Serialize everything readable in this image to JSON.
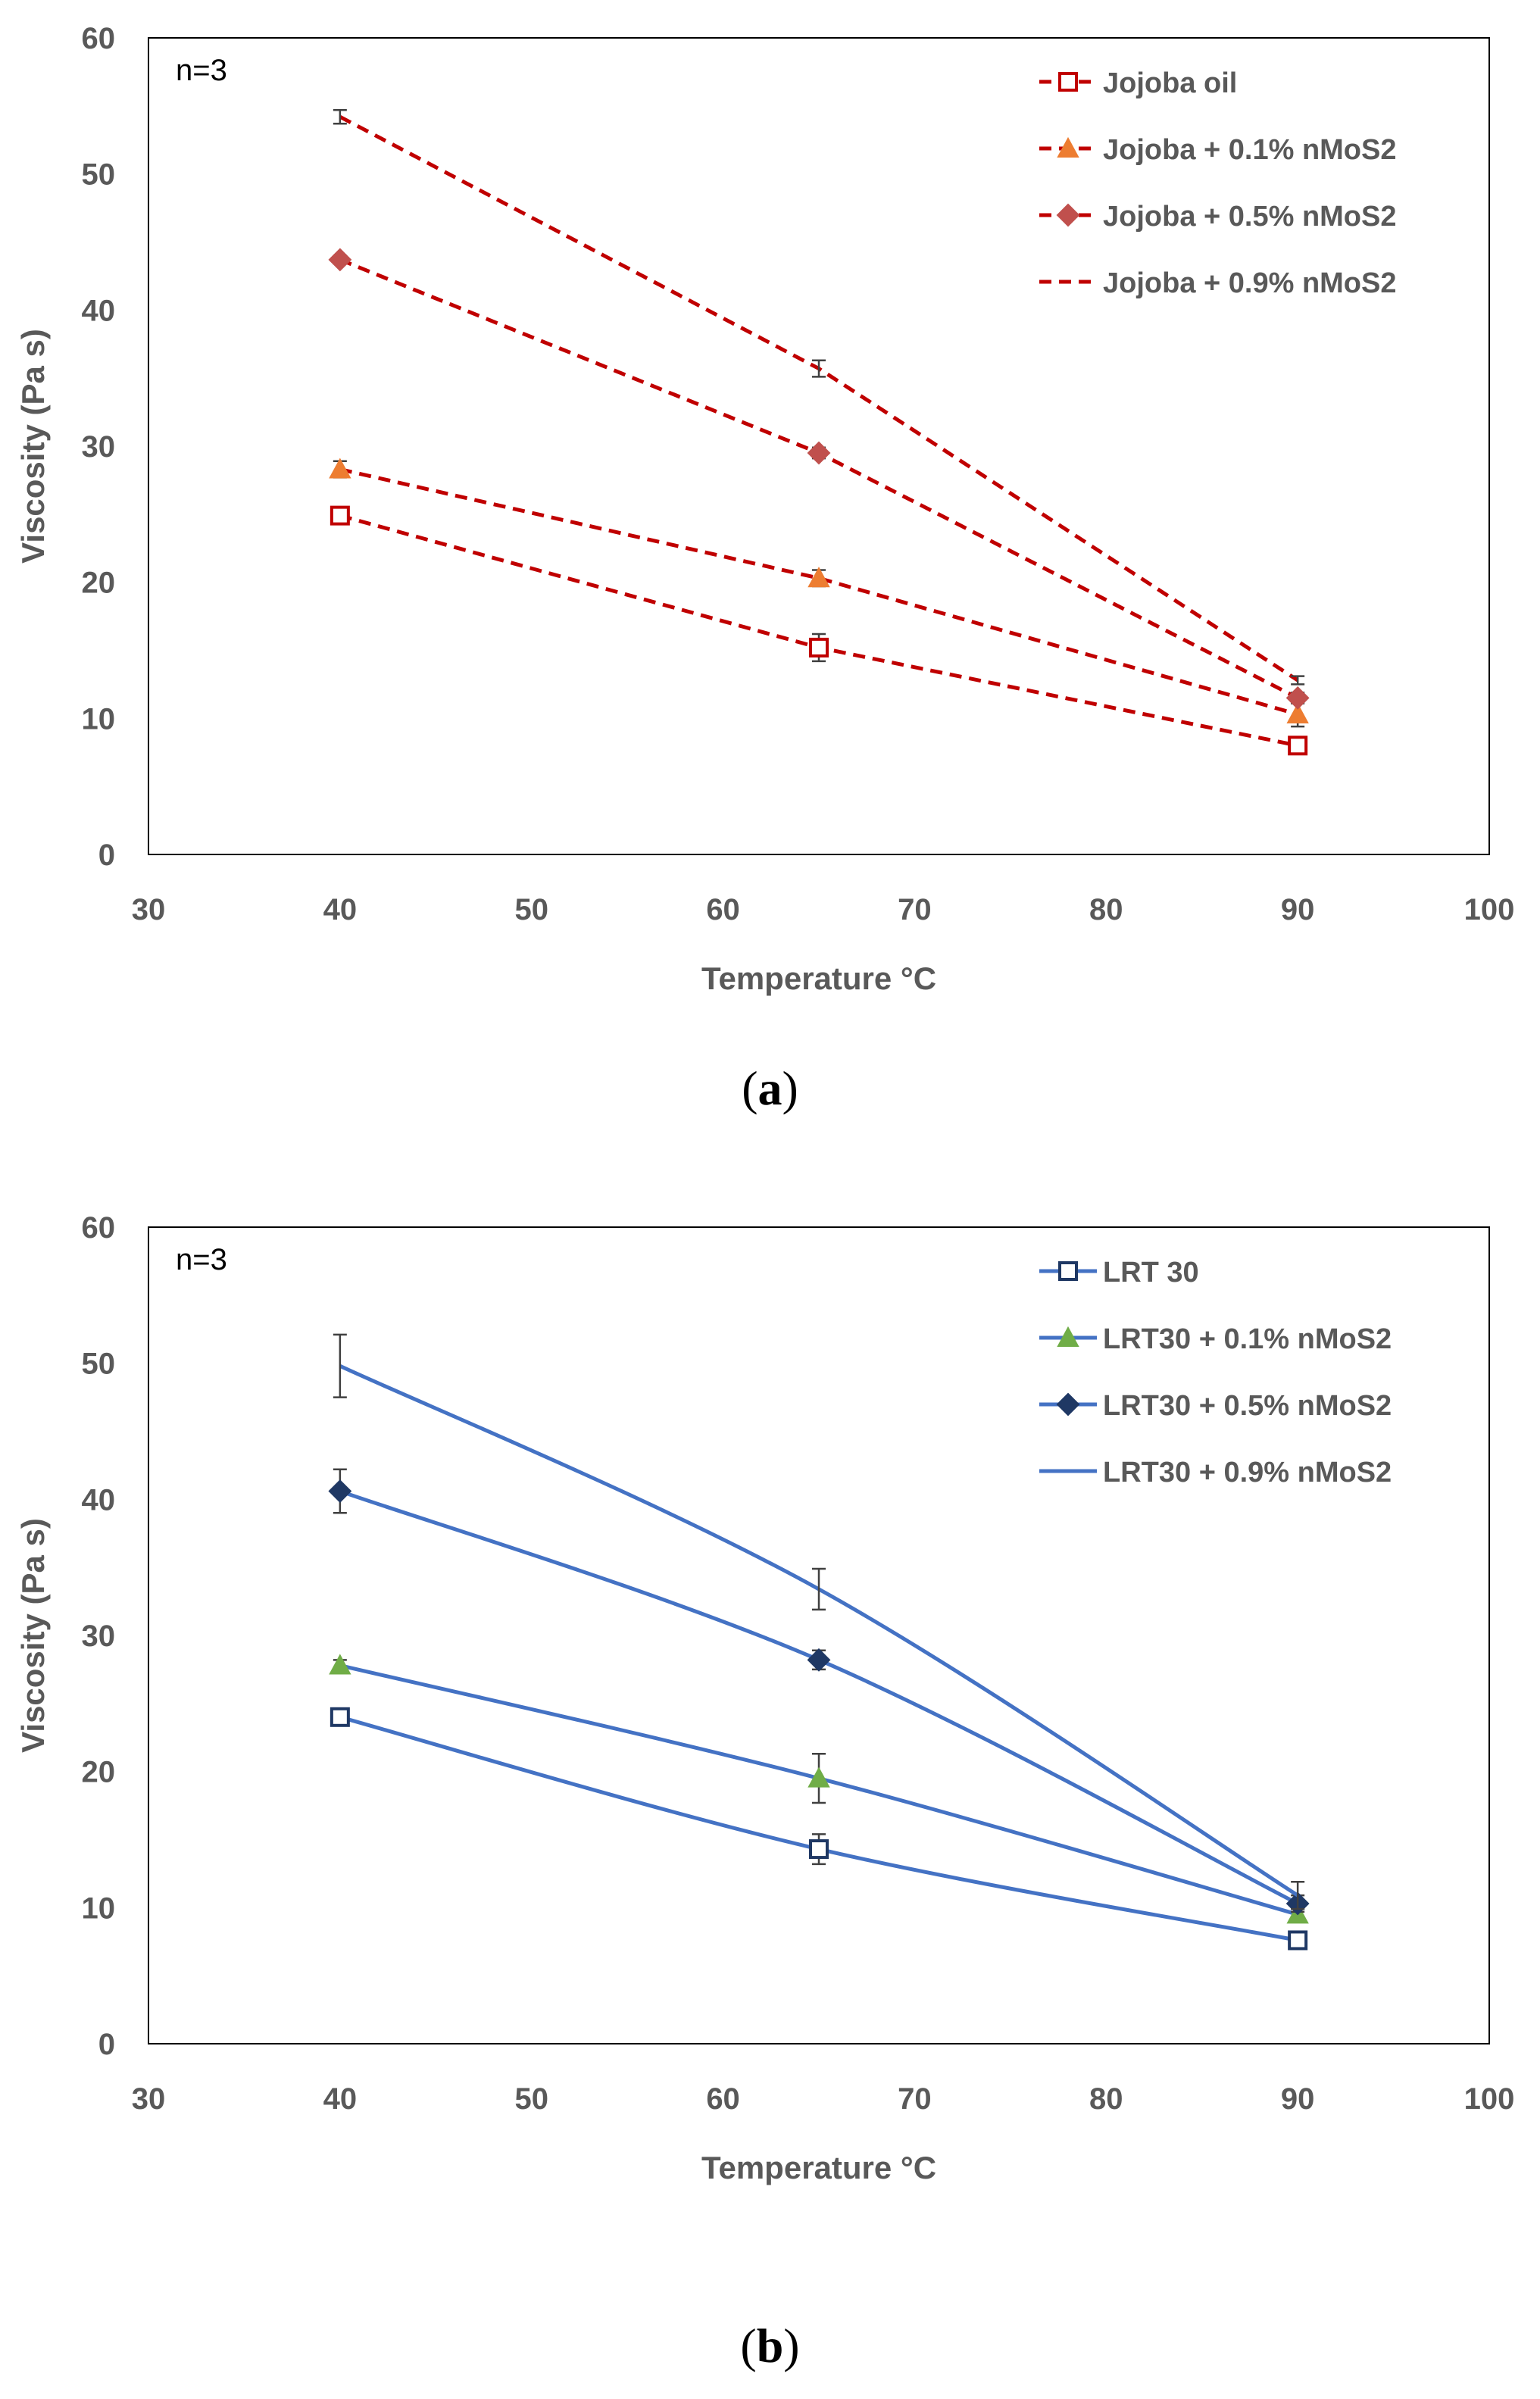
{
  "captions": {
    "a_open": "(",
    "a_letter": "a",
    "a_close": ")",
    "b_open": "(",
    "b_letter": "b",
    "b_close": ")"
  },
  "chart_data": [
    {
      "type": "line",
      "panel": "a",
      "annotation": "n=3",
      "xlabel": "Temperature °C",
      "ylabel": "Viscosity (Pa s)",
      "xlim": [
        30,
        100
      ],
      "ylim": [
        0,
        60
      ],
      "xticks": [
        30,
        40,
        50,
        60,
        70,
        80,
        90,
        100
      ],
      "yticks": [
        0,
        10,
        20,
        30,
        40,
        50,
        60
      ],
      "x": [
        40,
        65,
        90
      ],
      "line_color": "#C00000",
      "line_style": "dashed",
      "legend_position": "top-right",
      "series": [
        {
          "name": "Jojoba oil",
          "marker": "square",
          "marker_color": "#C00000",
          "values": [
            24.9,
            15.2,
            8.0
          ],
          "errors": [
            0.4,
            1.0,
            0.3
          ]
        },
        {
          "name": "Jojoba + 0.1% nMoS2",
          "marker": "triangle",
          "marker_color": "#ED7D31",
          "values": [
            28.3,
            20.3,
            10.3
          ],
          "errors": [
            0.6,
            0.6,
            0.9
          ]
        },
        {
          "name": "Jojoba + 0.5% nMoS2",
          "marker": "diamond",
          "marker_color": "#C0504D",
          "values": [
            43.7,
            29.5,
            11.5
          ],
          "errors": [
            0.3,
            0.4,
            0.4
          ]
        },
        {
          "name": "Jojoba + 0.9% nMoS2",
          "marker": "none",
          "marker_color": "#C00000",
          "values": [
            54.2,
            35.7,
            12.8
          ],
          "errors": [
            0.5,
            0.6,
            0.3
          ]
        }
      ]
    },
    {
      "type": "line",
      "panel": "b",
      "annotation": "n=3",
      "xlabel": "Temperature °C",
      "ylabel": "Viscosity (Pa s)",
      "xlim": [
        30,
        100
      ],
      "ylim": [
        0,
        60
      ],
      "xticks": [
        30,
        40,
        50,
        60,
        70,
        80,
        90,
        100
      ],
      "yticks": [
        0,
        10,
        20,
        30,
        40,
        50,
        60
      ],
      "x": [
        40,
        65,
        90
      ],
      "line_color": "#4472C4",
      "line_style": "solid",
      "legend_position": "top-right",
      "series": [
        {
          "name": "LRT 30",
          "marker": "square",
          "marker_color": "#1F3864",
          "values": [
            24.0,
            14.3,
            7.6
          ],
          "errors": [
            0.3,
            1.1,
            0.3
          ]
        },
        {
          "name": "LRT30 + 0.1% nMoS2",
          "marker": "triangle",
          "marker_color": "#70AD47",
          "values": [
            27.8,
            19.5,
            9.5
          ],
          "errors": [
            0.4,
            1.8,
            0.4
          ]
        },
        {
          "name": "LRT30 + 0.5% nMoS2",
          "marker": "diamond",
          "marker_color": "#1F3864",
          "values": [
            40.6,
            28.2,
            10.3
          ],
          "errors": [
            1.6,
            0.7,
            0.6
          ]
        },
        {
          "name": "LRT30 + 0.9% nMoS2",
          "marker": "none",
          "marker_color": "#4472C4",
          "values": [
            49.8,
            33.4,
            10.9
          ],
          "errors": [
            2.3,
            1.5,
            1.0
          ]
        }
      ]
    }
  ]
}
